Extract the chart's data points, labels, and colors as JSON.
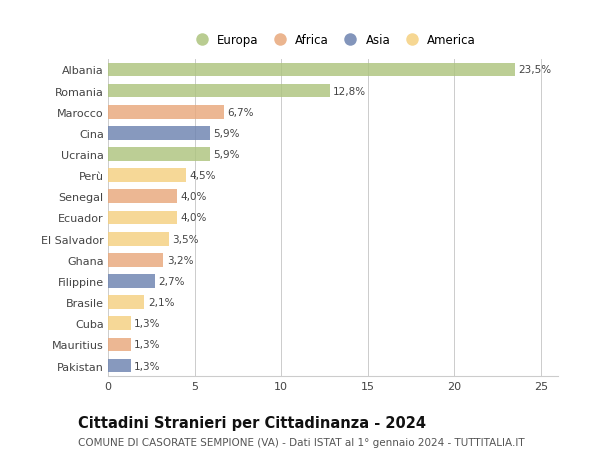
{
  "countries": [
    "Albania",
    "Romania",
    "Marocco",
    "Cina",
    "Ucraina",
    "Perù",
    "Senegal",
    "Ecuador",
    "El Salvador",
    "Ghana",
    "Filippine",
    "Brasile",
    "Cuba",
    "Mauritius",
    "Pakistan"
  ],
  "values": [
    23.5,
    12.8,
    6.7,
    5.9,
    5.9,
    4.5,
    4.0,
    4.0,
    3.5,
    3.2,
    2.7,
    2.1,
    1.3,
    1.3,
    1.3
  ],
  "labels": [
    "23,5%",
    "12,8%",
    "6,7%",
    "5,9%",
    "5,9%",
    "4,5%",
    "4,0%",
    "4,0%",
    "3,5%",
    "3,2%",
    "2,7%",
    "2,1%",
    "1,3%",
    "1,3%",
    "1,3%"
  ],
  "continents": [
    "Europa",
    "Europa",
    "Africa",
    "Asia",
    "Europa",
    "America",
    "Africa",
    "America",
    "America",
    "Africa",
    "Asia",
    "America",
    "America",
    "Africa",
    "Asia"
  ],
  "colors": {
    "Europa": "#adc47e",
    "Africa": "#e8a87c",
    "Asia": "#6d83b0",
    "America": "#f5d080"
  },
  "legend_order": [
    "Europa",
    "Africa",
    "Asia",
    "America"
  ],
  "xlim": [
    0,
    26
  ],
  "xticks": [
    0,
    5,
    10,
    15,
    20,
    25
  ],
  "title": "Cittadini Stranieri per Cittadinanza - 2024",
  "subtitle": "COMUNE DI CASORATE SEMPIONE (VA) - Dati ISTAT al 1° gennaio 2024 - TUTTITALIA.IT",
  "background_color": "#ffffff",
  "grid_color": "#cccccc",
  "bar_height": 0.65,
  "title_fontsize": 10.5,
  "subtitle_fontsize": 7.5,
  "label_fontsize": 7.5,
  "tick_fontsize": 8,
  "legend_fontsize": 8.5
}
